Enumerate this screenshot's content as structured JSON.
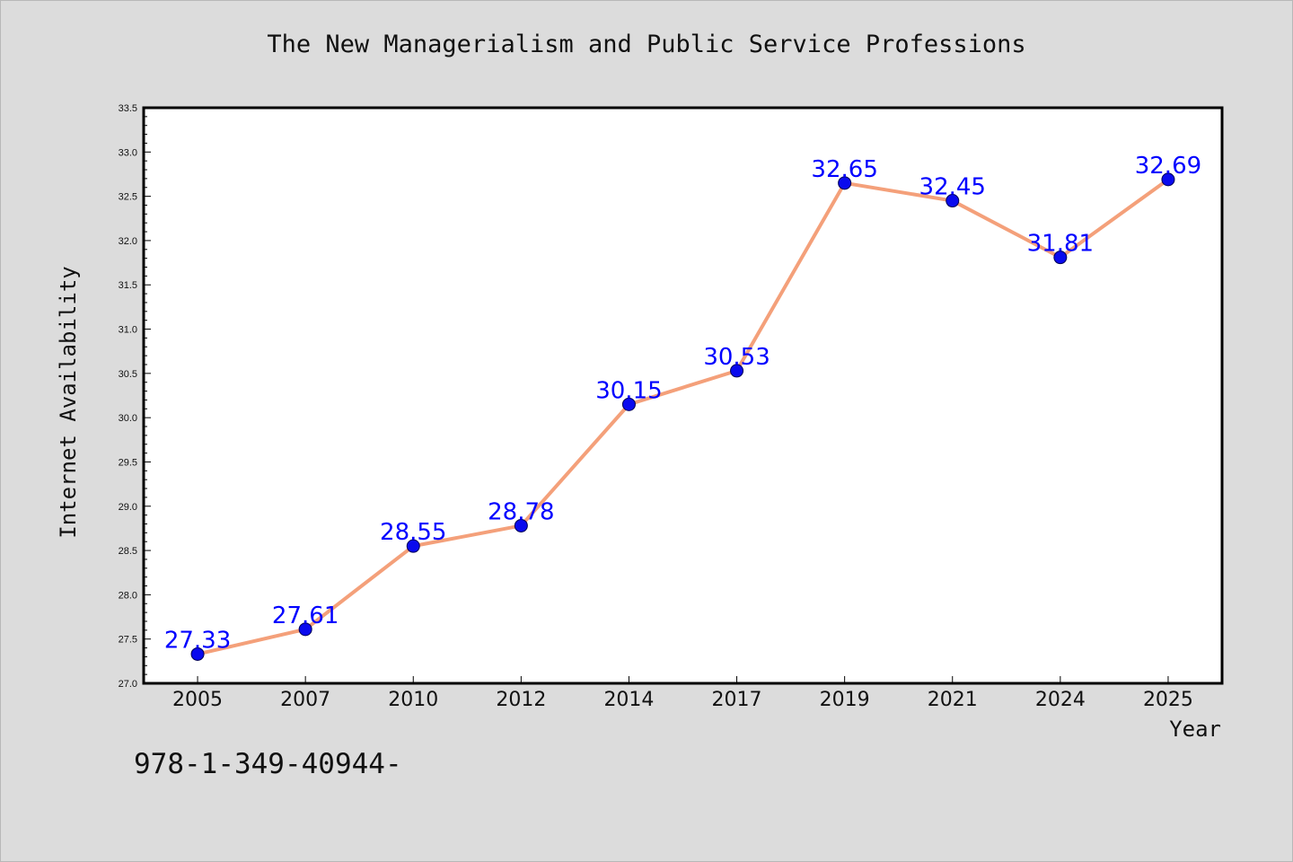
{
  "chart_data": {
    "type": "line",
    "title": "The New Managerialism and Public Service Professions",
    "xlabel": "Year",
    "ylabel": "Internet Availability",
    "categories": [
      "2005",
      "2007",
      "2010",
      "2012",
      "2014",
      "2017",
      "2019",
      "2021",
      "2024",
      "2025"
    ],
    "series": [
      {
        "values": [
          27.33,
          27.61,
          28.55,
          28.78,
          30.15,
          30.53,
          32.65,
          32.45,
          31.81,
          32.69
        ],
        "data_labels": [
          "27.33",
          "27.61",
          "28.55",
          "28.78",
          "30.15",
          "30.53",
          "32.65",
          "32.45",
          "31.81",
          "32.69"
        ],
        "line_color": "#f4a07a",
        "marker_color": "#0a0aee"
      }
    ],
    "ylim": [
      27.0,
      33.5
    ],
    "yticks": [
      "27.0",
      "27.5",
      "28.0",
      "28.5",
      "29.0",
      "29.5",
      "30.0",
      "30.5",
      "31.0",
      "31.5",
      "32.0",
      "32.5",
      "33.0",
      "33.5"
    ],
    "grid": false,
    "legend": "none",
    "label_color": "#0000ff"
  },
  "footer_text": "978-1-349-40944-",
  "colors": {
    "background": "#dcdcdc",
    "plot_background": "#ffffff",
    "axis": "#000000"
  }
}
